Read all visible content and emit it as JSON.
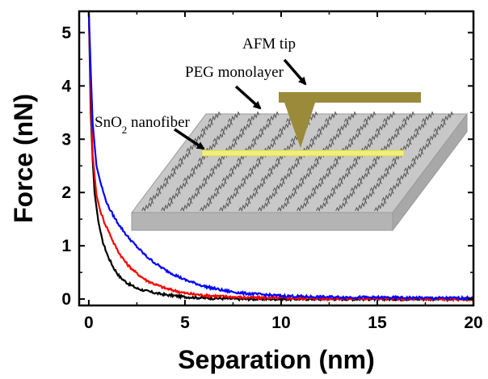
{
  "chart_data": {
    "type": "line",
    "xlabel": "Separation (nm)",
    "ylabel": "Force (nN)",
    "xlim": [
      -0.5,
      20
    ],
    "ylim": [
      -0.12,
      5.4
    ],
    "xticks": [
      0,
      5,
      10,
      15,
      20
    ],
    "yticks": [
      0,
      1,
      2,
      3,
      4,
      5
    ],
    "xtick_labels": [
      "0",
      "5",
      "10",
      "15",
      "20"
    ],
    "ytick_labels": [
      "0",
      "1",
      "2",
      "3",
      "4",
      "5"
    ],
    "grid": false,
    "legend": "none",
    "series": [
      {
        "color": "#000000",
        "x": [
          0.0,
          0.1,
          0.2,
          0.3,
          0.5,
          0.7,
          1.0,
          1.3,
          1.6,
          2.0,
          2.5,
          3.0,
          3.5,
          4.0,
          4.5,
          5.0,
          6.0,
          7.0,
          8.0,
          10.0,
          12.0,
          15.0,
          18.0,
          20.0
        ],
        "y": [
          5.4,
          3.5,
          2.6,
          2.0,
          1.45,
          1.1,
          0.8,
          0.58,
          0.42,
          0.3,
          0.2,
          0.15,
          0.11,
          0.08,
          0.06,
          0.04,
          0.02,
          0.01,
          0.0,
          0.0,
          0.0,
          0.0,
          0.0,
          0.0
        ]
      },
      {
        "color": "#ff0000",
        "x": [
          0.0,
          0.1,
          0.2,
          0.4,
          0.6,
          0.8,
          1.0,
          1.3,
          1.6,
          2.0,
          2.5,
          3.0,
          3.5,
          4.0,
          5.0,
          6.0,
          7.0,
          8.0,
          10.0,
          12.0,
          15.0,
          18.0,
          20.0
        ],
        "y": [
          5.4,
          3.9,
          2.7,
          1.95,
          1.65,
          1.45,
          1.3,
          1.05,
          0.85,
          0.65,
          0.48,
          0.35,
          0.27,
          0.2,
          0.11,
          0.07,
          0.05,
          0.03,
          0.02,
          0.01,
          0.01,
          0.0,
          0.0
        ]
      },
      {
        "color": "#0000ff",
        "x": [
          0.0,
          0.1,
          0.2,
          0.4,
          0.6,
          0.8,
          1.0,
          1.3,
          1.6,
          2.0,
          2.5,
          3.0,
          3.5,
          4.0,
          5.0,
          6.0,
          7.0,
          8.0,
          10.0,
          12.0,
          15.0,
          18.0,
          20.0
        ],
        "y": [
          5.4,
          4.3,
          3.3,
          2.5,
          2.2,
          1.95,
          1.75,
          1.55,
          1.38,
          1.18,
          0.98,
          0.8,
          0.66,
          0.54,
          0.36,
          0.24,
          0.16,
          0.11,
          0.06,
          0.04,
          0.03,
          0.02,
          0.02
        ]
      }
    ],
    "annotations": [
      {
        "text_main": "AFM tip",
        "text_sub": ""
      },
      {
        "text_main": "PEG monolayer",
        "text_sub": ""
      },
      {
        "text_main": "SnO",
        "text_sub": "2",
        "text_after": " nanofiber"
      }
    ]
  },
  "inset": {
    "substrate_color": "#c8c8c8",
    "substrate_edge_color": "#9a9a9a",
    "nanofiber_color": "#f2ee7a",
    "tip_color": "#9a8a3a"
  }
}
